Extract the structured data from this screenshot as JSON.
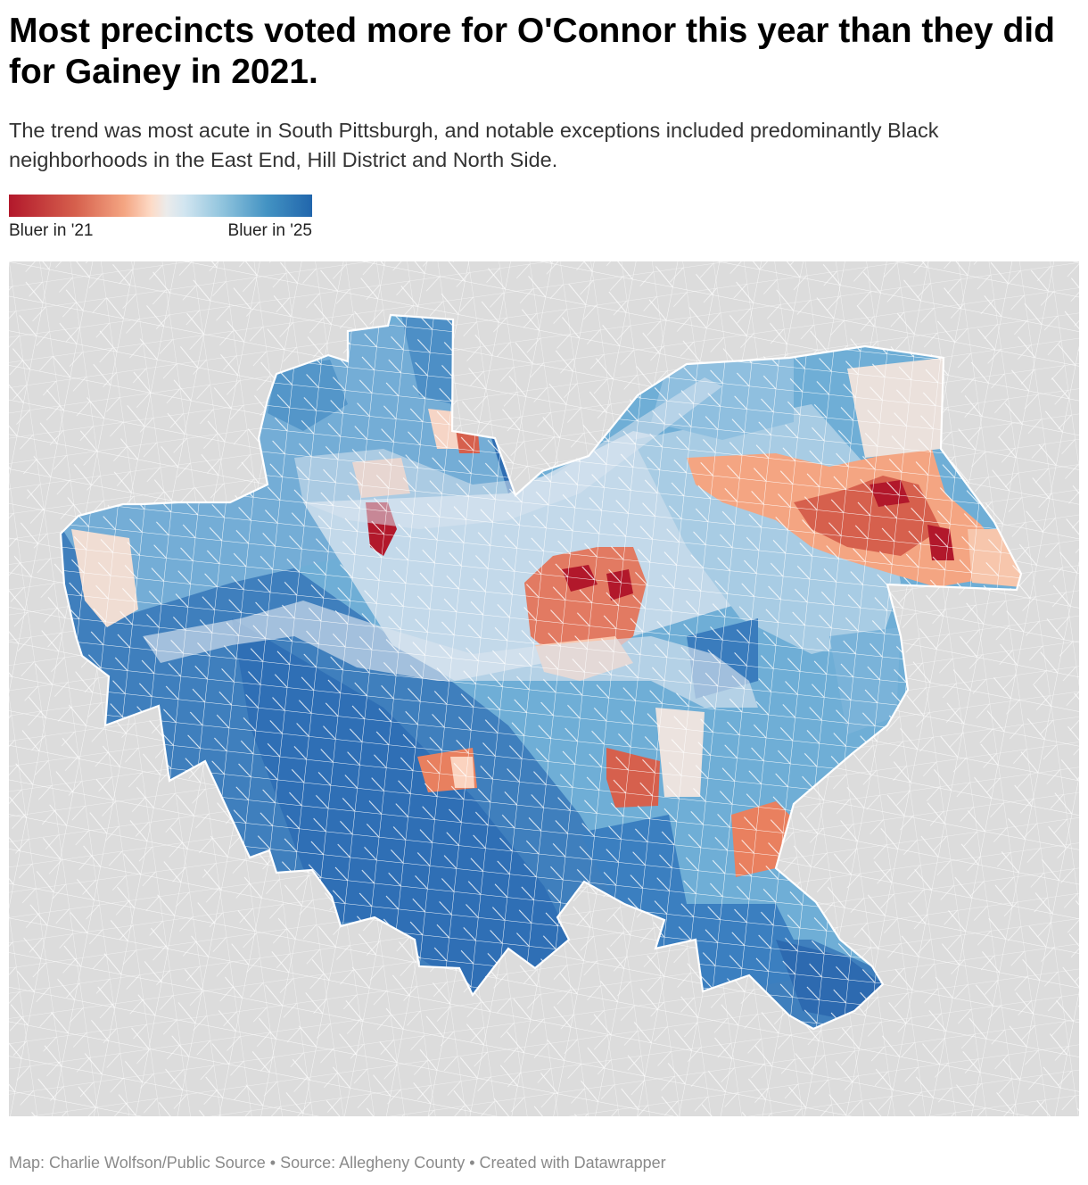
{
  "header": {
    "title": "Most precincts voted more for O'Connor this year than they did for Gainey in 2021.",
    "subtitle": "The trend was most acute in South Pittsburgh, and notable exceptions included predominantly Black neighborhoods in the East End, Hill District and North Side."
  },
  "legend": {
    "low_label": "Bluer in '21",
    "high_label": "Bluer in '25",
    "colors": [
      "#b2182b",
      "#d6604d",
      "#f4a582",
      "#fddbc7",
      "#ebebeb",
      "#d1e5f0",
      "#92c5de",
      "#4393c3",
      "#2166ac"
    ]
  },
  "map": {
    "background_color": "#dcdcdc",
    "boundary_color": "#ffffff",
    "city_fill": "#6faed6",
    "river_fill": "#c9dbe9"
  },
  "footer": {
    "credit": "Map: Charlie Wolfson/Public Source • Source: Allegheny County • Created with Datawrapper"
  }
}
